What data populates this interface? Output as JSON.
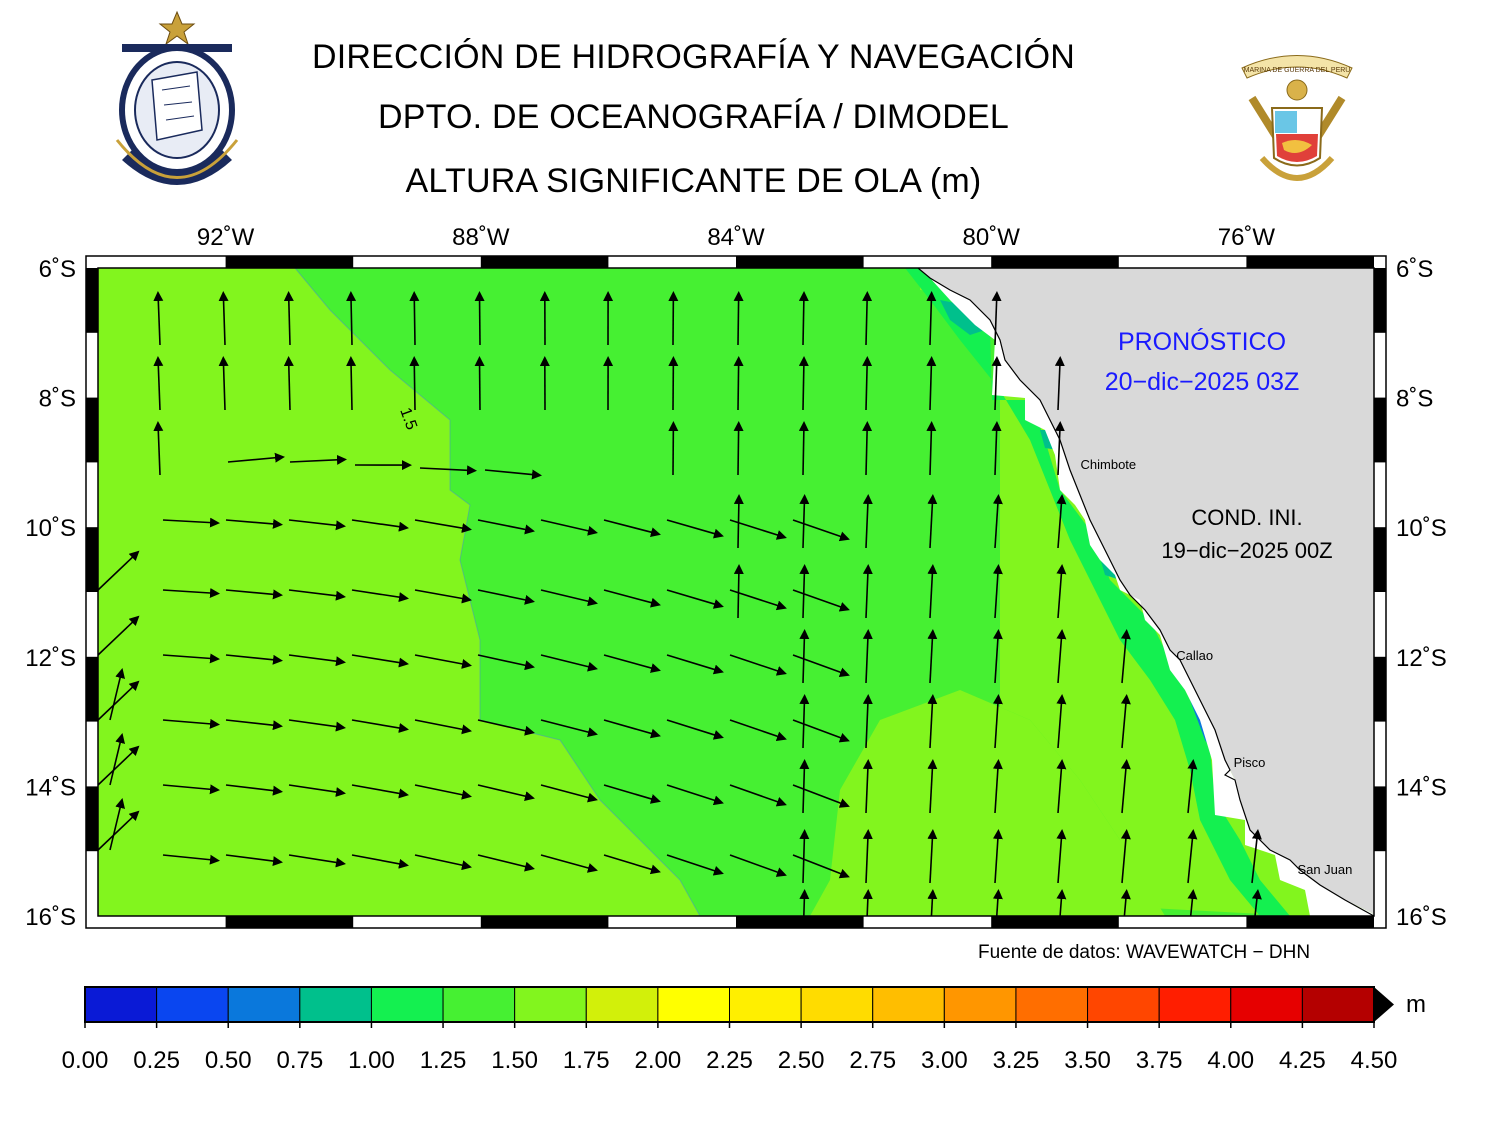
{
  "header": {
    "line1": "DIRECCIÓN DE HIDROGRAFÍA Y NAVEGACIÓN",
    "line2": "DPTO. DE OCEANOGRAFÍA / DIMODEL",
    "line3": "ALTURA SIGNIFICANTE DE OLA (m)"
  },
  "logos": {
    "left": "hydrography-navigation-seal",
    "right": "marina-de-guerra-del-peru-emblem",
    "right_banner": "MARINA DE GUERRA DEL PERU"
  },
  "map": {
    "lon_labels": [
      "92˚W",
      "88˚W",
      "84˚W",
      "80˚W",
      "76˚W"
    ],
    "lat_labels": [
      "6˚S",
      "8˚S",
      "10˚S",
      "12˚S",
      "14˚S",
      "16˚S"
    ],
    "lon_values": [
      -92,
      -88,
      -84,
      -80,
      -76
    ],
    "lat_values": [
      -6,
      -8,
      -10,
      -12,
      -14,
      -16
    ],
    "lon_range": [
      -94,
      -74
    ],
    "lat_range": [
      -16,
      -6
    ],
    "contour_label": "1.5",
    "forecast_label": "PRONÓSTICO",
    "forecast_time": "20−dic−2025 03Z",
    "init_label": "COND. INI.",
    "init_time": "19−dic−2025 00Z",
    "cities": [
      {
        "name": "Chimbote",
        "lon": -78.6,
        "lat": -9.1
      },
      {
        "name": "Callao",
        "lon": -77.1,
        "lat": -12.05
      },
      {
        "name": "Pisco",
        "lon": -76.2,
        "lat": -13.7
      },
      {
        "name": "San Juan",
        "lon": -75.2,
        "lat": -15.35
      }
    ],
    "land_color": "#d9d9d9"
  },
  "source": "Fuente de datos: WAVEWATCH − DHN",
  "colorbar": {
    "unit": "m",
    "ticks": [
      "0.00",
      "0.25",
      "0.50",
      "0.75",
      "1.00",
      "1.25",
      "1.50",
      "1.75",
      "2.00",
      "2.25",
      "2.50",
      "2.75",
      "3.00",
      "3.25",
      "3.50",
      "3.75",
      "4.00",
      "4.25",
      "4.50"
    ],
    "colors": [
      "#0a1ad6",
      "#0a46f0",
      "#0a78dc",
      "#00c08c",
      "#14f050",
      "#46f032",
      "#82f51e",
      "#d2f00a",
      "#ffff00",
      "#ffef00",
      "#ffdc00",
      "#ffbe00",
      "#ff9600",
      "#ff6e00",
      "#ff4600",
      "#ff1e00",
      "#e60000",
      "#b40000"
    ]
  }
}
